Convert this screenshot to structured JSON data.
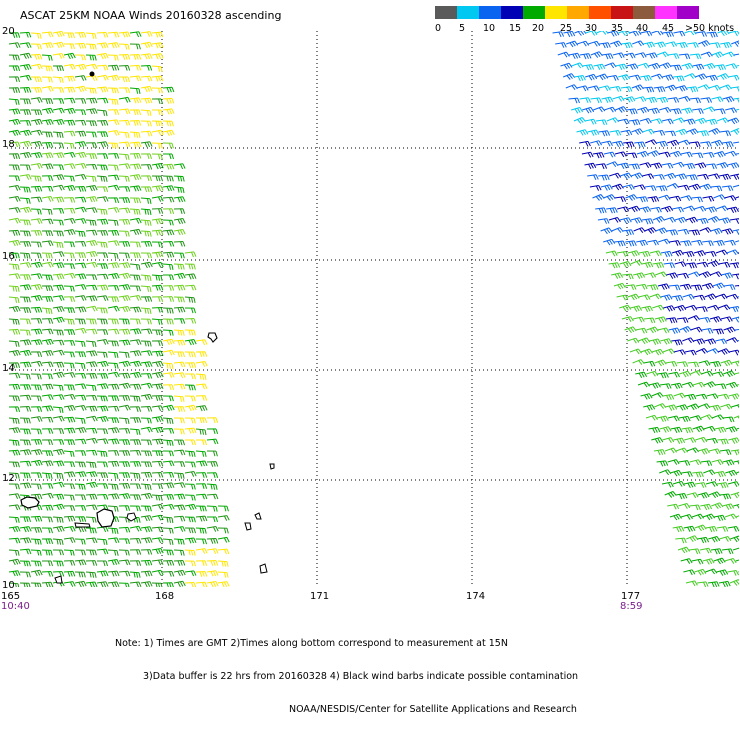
{
  "title": "ASCAT 25KM NOAA Winds 20160328 ascending",
  "legend": {
    "colors": [
      "#5a5a5a",
      "#00c8f0",
      "#0a64f0",
      "#0000b4",
      "#00aa00",
      "#ffe600",
      "#ffa800",
      "#ff5000",
      "#c81414",
      "#8c5a3c",
      "#ff32ff",
      "#a000c8"
    ],
    "tick_labels": [
      "0",
      "5",
      "10",
      "15",
      "20",
      "25",
      "30",
      "35",
      "40",
      "45",
      ">50 knots"
    ]
  },
  "lat_labels": [
    "20",
    "18",
    "16",
    "14",
    "12",
    "10"
  ],
  "lon_labels": [
    "165",
    "168",
    "171",
    "174",
    "177"
  ],
  "time_labels": {
    "start": "10:40",
    "end": "8:59"
  },
  "notes": [
    "Note: 1) Times are GMT 2)Times along bottom correspond to measurement at 15N",
    "3)Data buffer is 22 hrs from 20160328 4) Black wind barbs indicate possible contamination",
    "NOAA/NESDIS/Center for Satellite Applications and Research"
  ]
}
